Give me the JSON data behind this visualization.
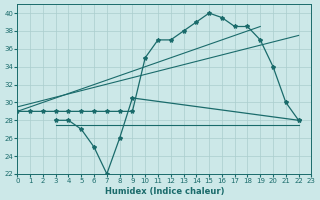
{
  "xlabel": "Humidex (Indice chaleur)",
  "bg_color": "#cce8e8",
  "grid_color": "#aacece",
  "line_color": "#1a6b6b",
  "xlim": [
    0,
    23
  ],
  "ylim": [
    22,
    41
  ],
  "yticks": [
    22,
    24,
    26,
    28,
    30,
    32,
    34,
    36,
    38,
    40
  ],
  "xticks": [
    0,
    1,
    2,
    3,
    4,
    5,
    6,
    7,
    8,
    9,
    10,
    11,
    12,
    13,
    14,
    15,
    16,
    17,
    18,
    19,
    20,
    21,
    22,
    23
  ],
  "main_curve": {
    "x": [
      0,
      1,
      2,
      3,
      4,
      5,
      6,
      7,
      8,
      9,
      10,
      11,
      12,
      13,
      14,
      15,
      16,
      17,
      18,
      19,
      20,
      21,
      22
    ],
    "y": [
      29,
      29,
      29,
      29,
      29,
      29,
      29,
      29,
      29,
      29,
      35,
      37,
      37,
      38,
      39,
      40,
      39.5,
      38.5,
      38.5,
      37,
      34,
      30,
      28
    ]
  },
  "lower_curve": {
    "x": [
      3,
      4,
      5,
      6,
      7,
      8,
      9,
      22
    ],
    "y": [
      28,
      28,
      27,
      25,
      22,
      26,
      30.5,
      28
    ]
  },
  "flat_line": {
    "x": [
      3,
      22
    ],
    "y": [
      27.5,
      27.5
    ]
  },
  "diag_line1": {
    "x": [
      0,
      19
    ],
    "y": [
      29,
      38.5
    ]
  },
  "diag_line2": {
    "x": [
      0,
      22
    ],
    "y": [
      29.5,
      37.5
    ]
  }
}
